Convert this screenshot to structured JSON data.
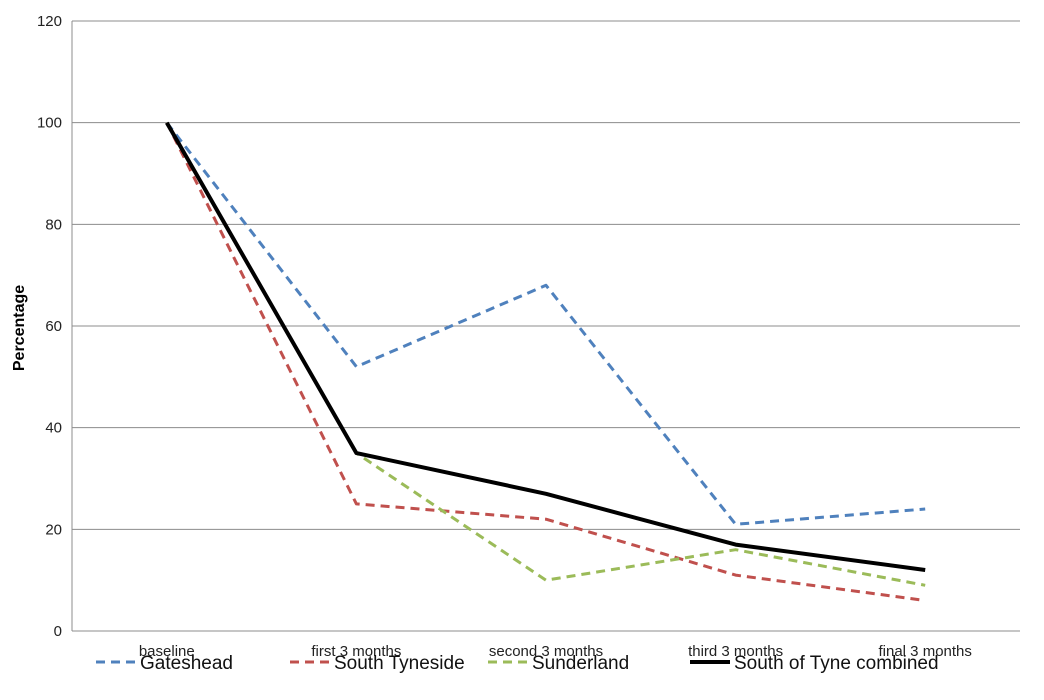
{
  "chart_data": {
    "type": "line",
    "title": "",
    "xlabel": "",
    "ylabel": "Percentage",
    "ylim": [
      0,
      120
    ],
    "yticks": [
      0,
      20,
      40,
      60,
      80,
      100,
      120
    ],
    "grid": true,
    "legend_position": "bottom",
    "categories": [
      "baseline",
      "first 3 months",
      "second 3 months",
      "third 3 months",
      "final 3 months"
    ],
    "series": [
      {
        "name": "Gateshead",
        "values": [
          100,
          52,
          68,
          21,
          24
        ],
        "color": "#4f81bd",
        "style": "dashed"
      },
      {
        "name": "South Tyneside",
        "values": [
          100,
          25,
          22,
          11,
          6
        ],
        "color": "#c0504d",
        "style": "dashed"
      },
      {
        "name": "Sunderland",
        "values": [
          100,
          35,
          10,
          16,
          9
        ],
        "color": "#9bbb59",
        "style": "dashed"
      },
      {
        "name": "South of Tyne combined",
        "values": [
          100,
          35,
          27,
          17,
          12
        ],
        "color": "#000000",
        "style": "solid"
      }
    ]
  }
}
